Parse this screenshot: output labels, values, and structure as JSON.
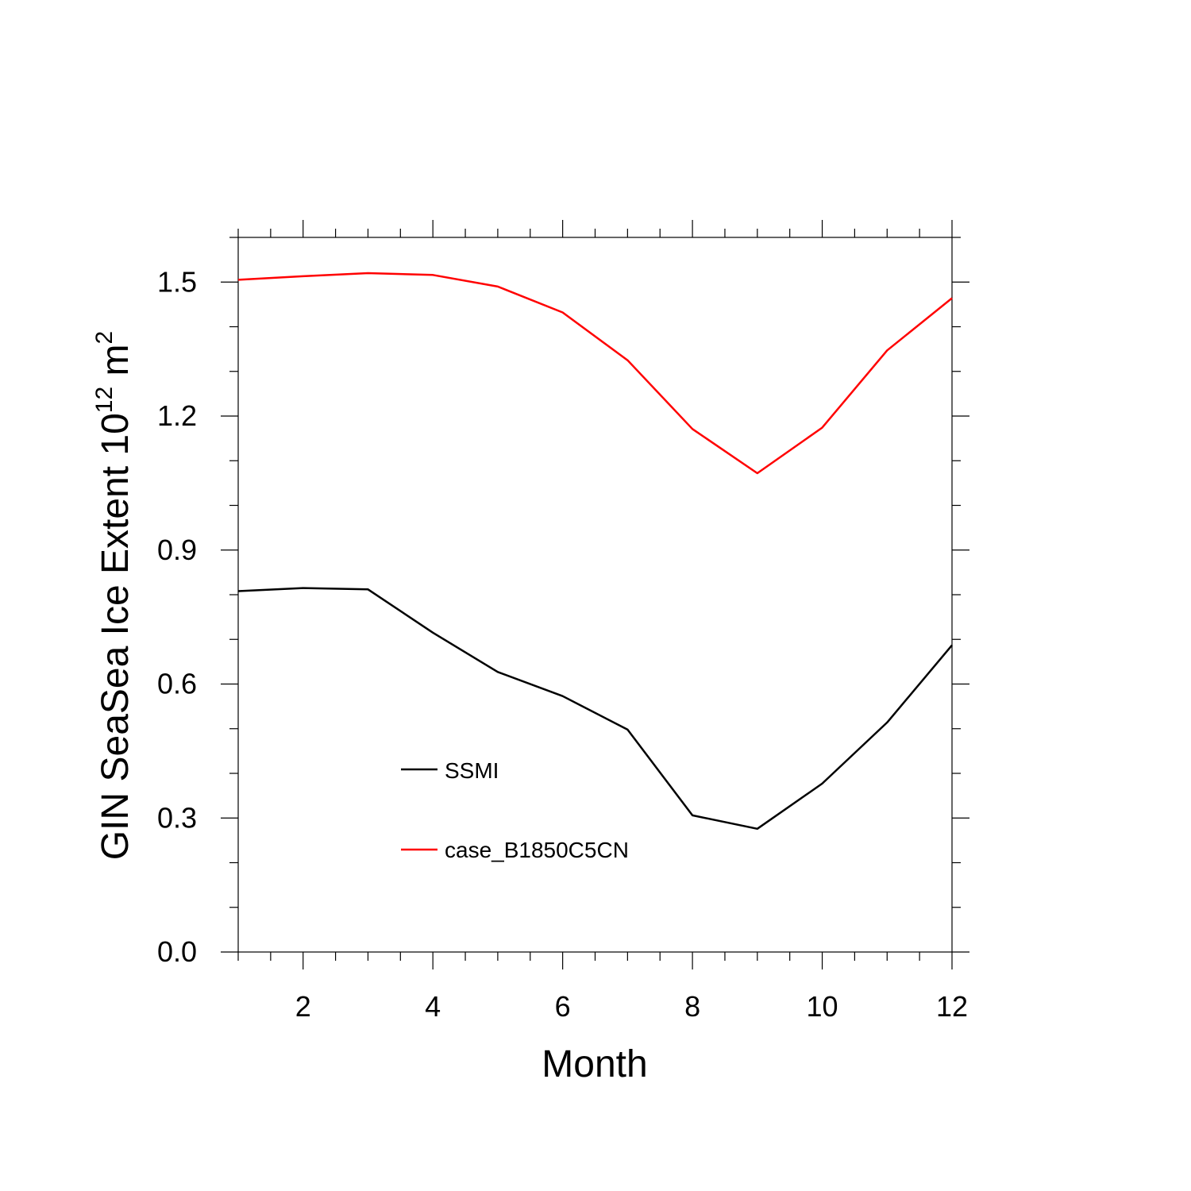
{
  "chart_data": {
    "type": "line",
    "xlabel": "Month",
    "ylabel_main": "GIN SeaSea Ice Extent 10",
    "ylabel_exp": "12",
    "ylabel_unit": " m",
    "ylabel_unit_exp": "2",
    "xlim": [
      1,
      12
    ],
    "ylim": [
      0,
      1.6
    ],
    "x_major_ticks": [
      2,
      4,
      6,
      8,
      10,
      12
    ],
    "x_tick_labels": [
      "2",
      "4",
      "6",
      "8",
      "10",
      "12"
    ],
    "y_major_ticks": [
      0,
      0.3,
      0.6,
      0.9,
      1.2,
      1.5
    ],
    "y_tick_labels": [
      "0.0",
      "0.3",
      "0.6",
      "0.9",
      "1.2",
      "1.5"
    ],
    "grid": false,
    "legend_position": "lower-left",
    "x": [
      1,
      2,
      3,
      4,
      5,
      6,
      7,
      8,
      9,
      10,
      11,
      12
    ],
    "series": [
      {
        "name": "SSMI",
        "color": "#000000",
        "values": [
          0.808,
          0.815,
          0.812,
          0.715,
          0.627,
          0.573,
          0.498,
          0.306,
          0.276,
          0.377,
          0.514,
          0.687
        ]
      },
      {
        "name": "case_B1850C5CN",
        "color": "#ff0000",
        "values": [
          1.505,
          1.513,
          1.52,
          1.516,
          1.49,
          1.432,
          1.325,
          1.171,
          1.072,
          1.174,
          1.347,
          1.464
        ]
      }
    ]
  }
}
